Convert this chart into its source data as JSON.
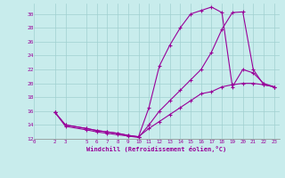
{
  "xlabel": "Windchill (Refroidissement éolien,°C)",
  "bg_color": "#c8ecec",
  "grid_color": "#a0d0d0",
  "line_color": "#990099",
  "xlim": [
    0,
    23.5
  ],
  "ylim": [
    12,
    31.5
  ],
  "xticks": [
    0,
    2,
    3,
    5,
    6,
    7,
    8,
    9,
    10,
    11,
    12,
    13,
    14,
    15,
    16,
    17,
    18,
    19,
    20,
    21,
    22,
    23
  ],
  "yticks": [
    12,
    14,
    16,
    18,
    20,
    22,
    24,
    26,
    28,
    30
  ],
  "line1_x": [
    2,
    3,
    5,
    6,
    7,
    8,
    9,
    10,
    11,
    12,
    13,
    14,
    15,
    16,
    17,
    18,
    19,
    20,
    21,
    22,
    23
  ],
  "line1_y": [
    15.8,
    14.0,
    13.5,
    13.2,
    13.0,
    12.8,
    12.5,
    12.3,
    16.5,
    22.5,
    25.5,
    28.0,
    30.0,
    30.5,
    31.0,
    30.2,
    19.5,
    22.0,
    21.5,
    20.0,
    19.5
  ],
  "line2_x": [
    2,
    3,
    5,
    6,
    7,
    8,
    9,
    10,
    11,
    12,
    13,
    14,
    15,
    16,
    17,
    18,
    19,
    20,
    21,
    22,
    23
  ],
  "line2_y": [
    15.8,
    13.8,
    13.3,
    13.0,
    12.8,
    12.6,
    12.4,
    12.2,
    14.0,
    16.0,
    17.5,
    19.0,
    20.5,
    22.0,
    24.5,
    27.8,
    30.2,
    30.3,
    22.0,
    19.8,
    19.5
  ],
  "line3_x": [
    2,
    3,
    5,
    6,
    7,
    8,
    9,
    10,
    11,
    12,
    13,
    14,
    15,
    16,
    17,
    18,
    19,
    20,
    21,
    22,
    23
  ],
  "line3_y": [
    15.8,
    14.0,
    13.5,
    13.2,
    13.0,
    12.8,
    12.5,
    12.3,
    13.5,
    14.5,
    15.5,
    16.5,
    17.5,
    18.5,
    18.8,
    19.5,
    19.8,
    20.0,
    20.0,
    19.8,
    19.5
  ]
}
